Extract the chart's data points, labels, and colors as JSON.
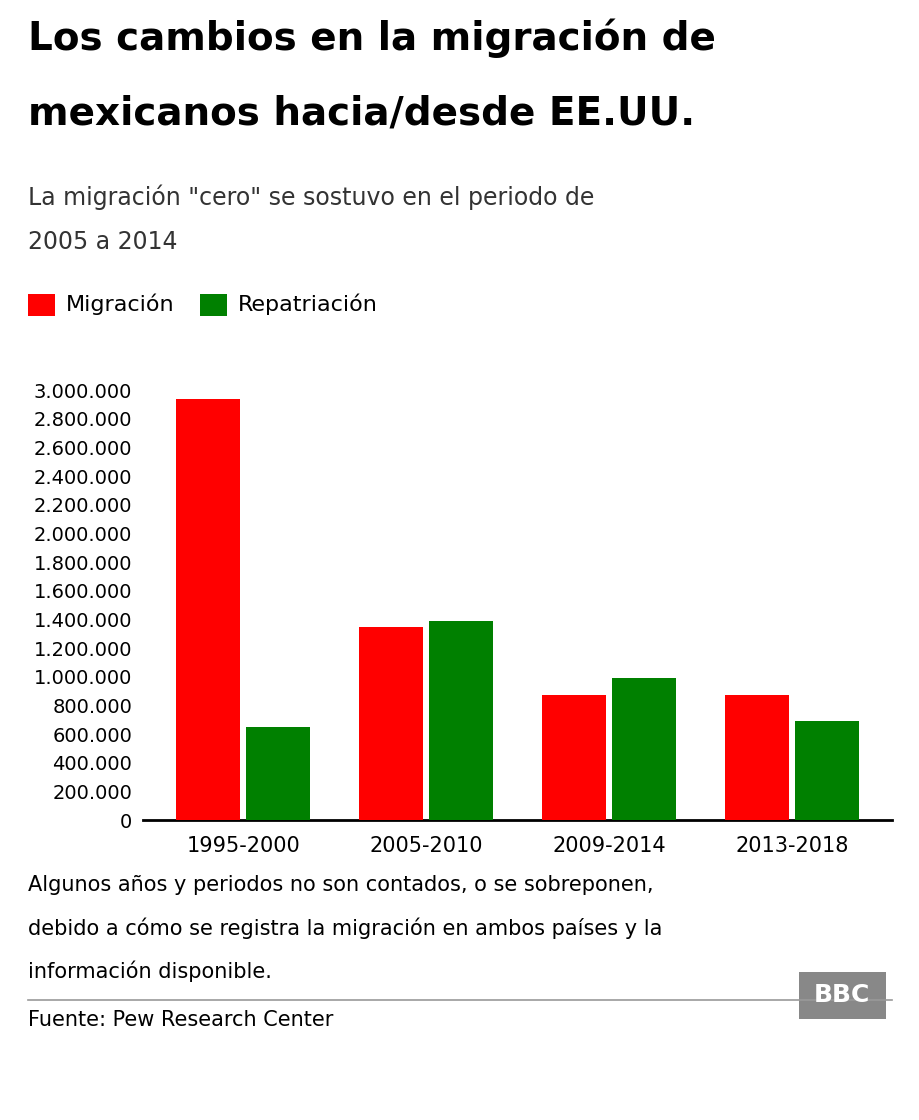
{
  "title_line1": "Los cambios en la migración de",
  "title_line2": "mexicanos hacia/desde EE.UU.",
  "subtitle_line1": "La migración \"cero\" se sostuvo en el periodo de",
  "subtitle_line2": "2005 a 2014",
  "legend": [
    "Migración",
    "Repatriación"
  ],
  "legend_colors": [
    "#ff0000",
    "#008000"
  ],
  "categories": [
    "1995-2000",
    "2005-2010",
    "2009-2014",
    "2013-2018"
  ],
  "migracion": [
    2940000,
    1350000,
    870000,
    870000
  ],
  "repatriacion": [
    650000,
    1390000,
    990000,
    690000
  ],
  "bar_color_red": "#ff0000",
  "bar_color_green": "#008000",
  "ylim": [
    0,
    3000000
  ],
  "yticks": [
    0,
    200000,
    400000,
    600000,
    800000,
    1000000,
    1200000,
    1400000,
    1600000,
    1800000,
    2000000,
    2200000,
    2400000,
    2600000,
    2800000,
    3000000
  ],
  "footnote_line1": "Algunos años y periodos no son contados, o se sobreponen,",
  "footnote_line2": "debido a cómo se registra la migración en ambos países y la",
  "footnote_line3": "información disponible.",
  "source": "Fuente: Pew Research Center",
  "bbc_text": "BBC",
  "background_color": "#ffffff",
  "title_fontsize": 28,
  "subtitle_fontsize": 17,
  "legend_fontsize": 16,
  "tick_fontsize": 14,
  "xtick_fontsize": 15,
  "footnote_fontsize": 15,
  "source_fontsize": 15,
  "bar_width": 0.35,
  "bar_gap": 0.03
}
